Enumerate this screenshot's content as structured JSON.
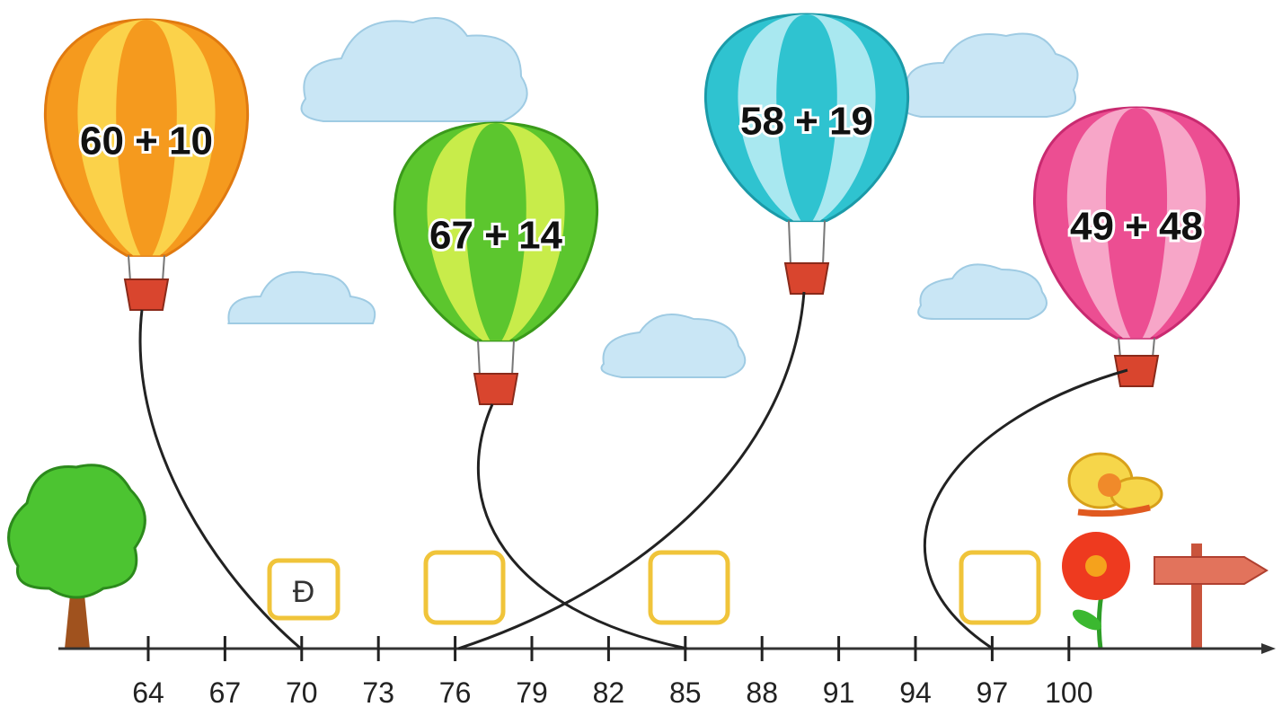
{
  "balloons": [
    {
      "label": "60 + 10"
    },
    {
      "label": "67 + 14"
    },
    {
      "label": "58 + 19"
    },
    {
      "label": "49 + 48"
    }
  ],
  "number_line": {
    "ticks": [
      64,
      67,
      70,
      73,
      76,
      79,
      82,
      85,
      88,
      91,
      94,
      97,
      100
    ]
  },
  "answer_box_text": "Đ"
}
